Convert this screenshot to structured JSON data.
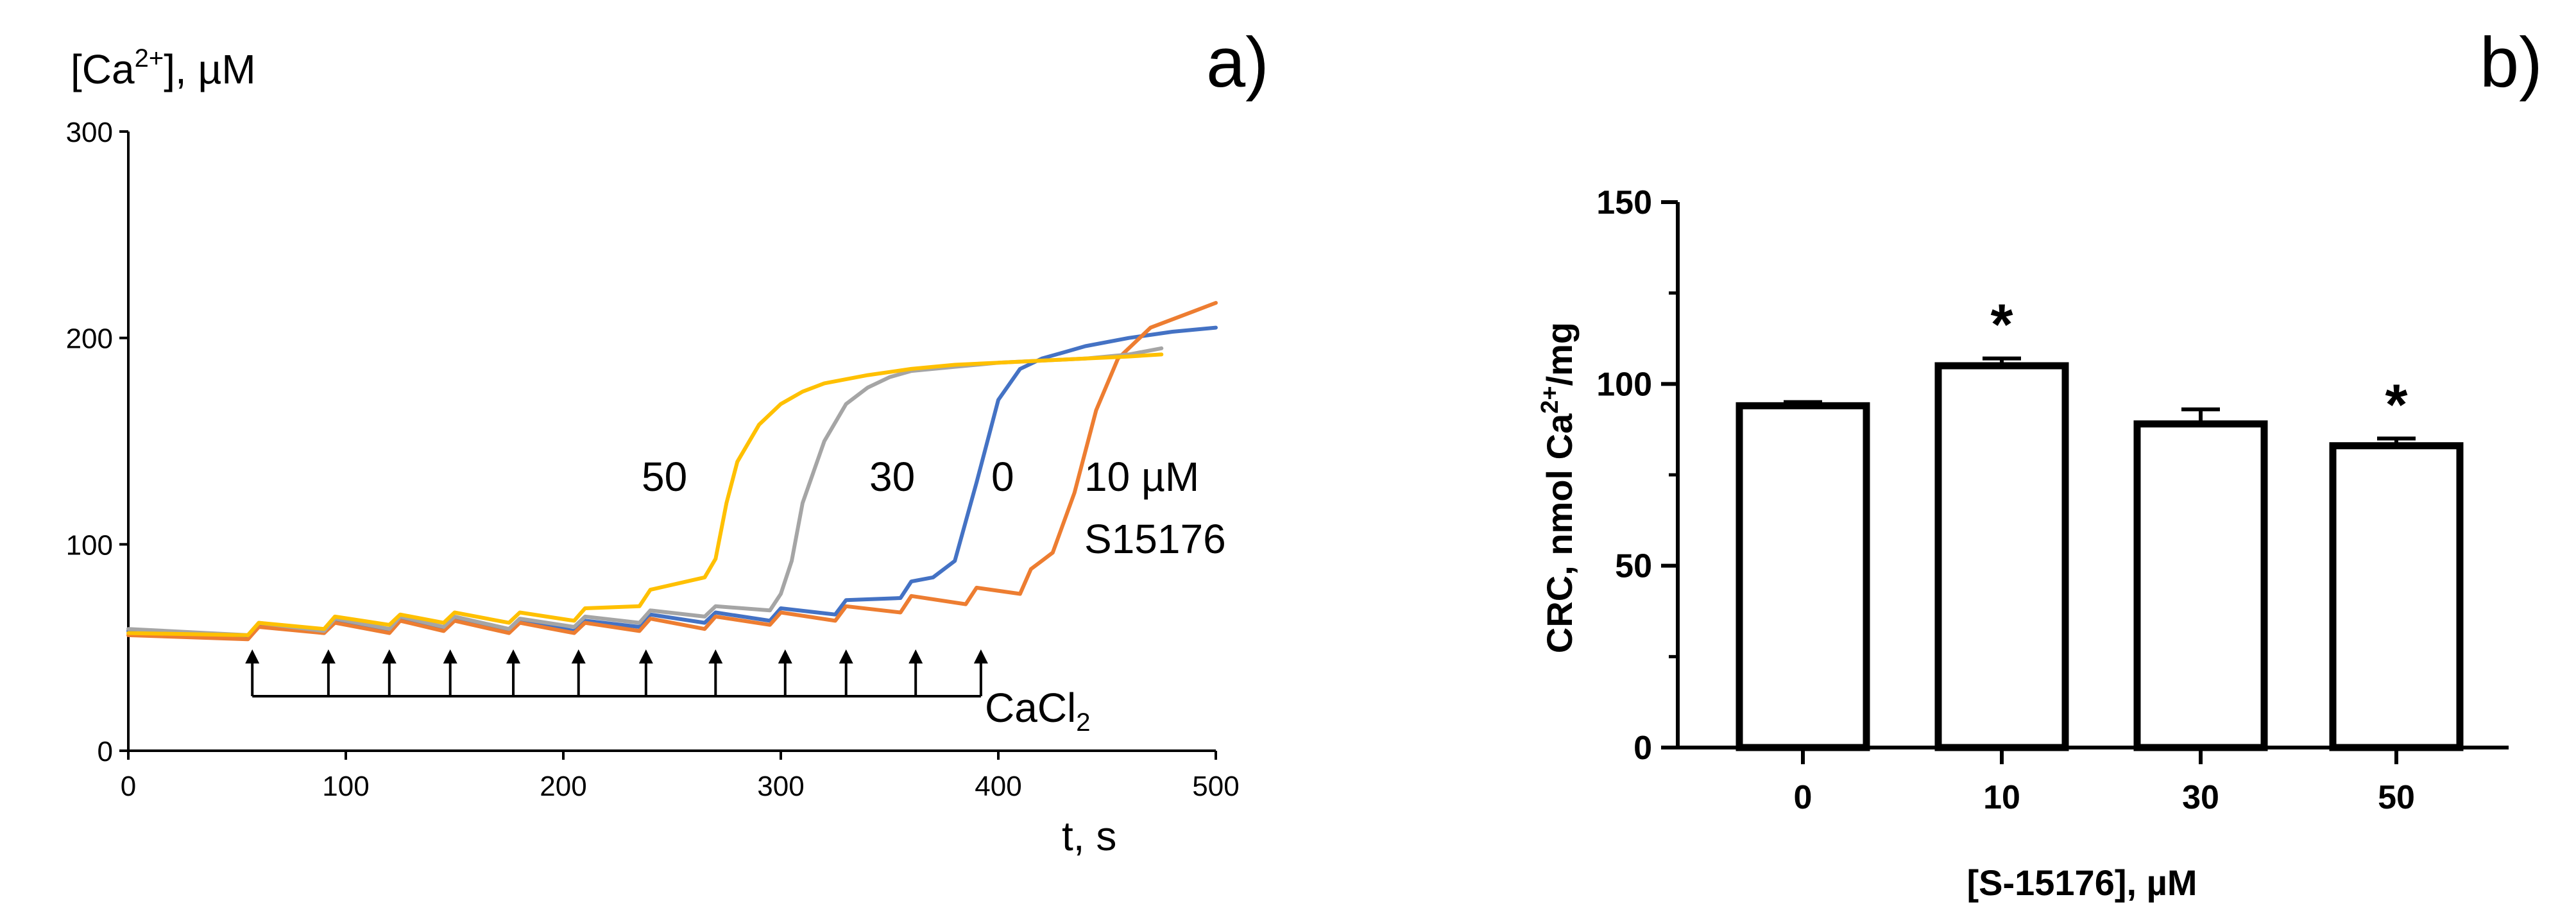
{
  "chart_data": [
    {
      "panel": "a)",
      "type": "line",
      "ylabel": "[Ca",
      "ylabel_sup": "2+",
      "ylabel_tail": "], µM",
      "xlabel": "t, s",
      "xlim": [
        0,
        500
      ],
      "ylim": [
        0,
        300
      ],
      "x_ticks": [
        "0",
        "100",
        "200",
        "300",
        "400",
        "500"
      ],
      "y_ticks": [
        "0",
        "100",
        "200",
        "300"
      ],
      "series": [
        {
          "name": "0",
          "color": "#4472C4",
          "x": [
            0,
            55,
            60,
            90,
            95,
            120,
            125,
            145,
            150,
            175,
            180,
            205,
            210,
            235,
            240,
            265,
            270,
            295,
            300,
            325,
            330,
            355,
            360,
            370,
            380,
            390,
            400,
            410,
            420,
            430,
            440,
            460,
            480,
            500
          ],
          "y": [
            58,
            55,
            61,
            57,
            63,
            58,
            64,
            59,
            64,
            58,
            63,
            58,
            63,
            60,
            66,
            62,
            67,
            63,
            69,
            66,
            73,
            74,
            82,
            84,
            92,
            130,
            170,
            185,
            190,
            193,
            196,
            200,
            203,
            205
          ]
        },
        {
          "name": "10 µM",
          "color": "#ED7D31",
          "x": [
            0,
            55,
            60,
            90,
            95,
            120,
            125,
            145,
            150,
            175,
            180,
            205,
            210,
            235,
            240,
            265,
            270,
            295,
            300,
            325,
            330,
            355,
            360,
            385,
            390,
            410,
            415,
            420,
            425,
            435,
            445,
            455,
            470,
            490,
            500
          ],
          "y": [
            56,
            54,
            60,
            57,
            62,
            57,
            63,
            58,
            63,
            57,
            62,
            57,
            62,
            58,
            64,
            59,
            65,
            61,
            67,
            63,
            70,
            67,
            75,
            71,
            79,
            76,
            88,
            92,
            96,
            125,
            165,
            190,
            205,
            213,
            217
          ]
        },
        {
          "name": "30",
          "color": "#A5A5A5",
          "x": [
            0,
            55,
            60,
            90,
            95,
            120,
            125,
            145,
            150,
            175,
            180,
            205,
            210,
            235,
            240,
            265,
            270,
            295,
            300,
            305,
            310,
            320,
            330,
            340,
            350,
            360,
            380,
            400,
            420,
            440,
            460,
            475
          ],
          "y": [
            59,
            56,
            62,
            58,
            64,
            59,
            65,
            60,
            65,
            59,
            64,
            60,
            65,
            62,
            68,
            65,
            70,
            68,
            76,
            92,
            120,
            150,
            168,
            176,
            181,
            184,
            186,
            188,
            189,
            190,
            192,
            195
          ]
        },
        {
          "name": "50",
          "color": "#FFC000",
          "x": [
            0,
            55,
            60,
            90,
            95,
            120,
            125,
            145,
            150,
            175,
            180,
            205,
            210,
            235,
            240,
            265,
            270,
            275,
            280,
            290,
            300,
            310,
            320,
            340,
            360,
            380,
            400,
            420,
            440,
            460,
            475
          ],
          "y": [
            57,
            56,
            62,
            59,
            65,
            61,
            66,
            62,
            67,
            62,
            67,
            63,
            69,
            70,
            78,
            84,
            93,
            120,
            140,
            158,
            168,
            174,
            178,
            182,
            185,
            187,
            188,
            189,
            190,
            191,
            192
          ]
        }
      ],
      "series_labels": {
        "l50": "50",
        "l30": "30",
        "l0": "0",
        "l10": "10 µM",
        "compound": "S15176"
      },
      "additions": {
        "label": "CaCl",
        "label_sub": "2",
        "times": [
          57,
          92,
          120,
          148,
          177,
          207,
          238,
          270,
          302,
          330,
          362,
          392
        ]
      }
    },
    {
      "panel": "b)",
      "type": "bar",
      "ylabel": "CRC, nmol  Ca",
      "ylabel_sup": "2+",
      "ylabel_tail": "/mg",
      "xlabel": "[S-15176], µM",
      "ylim": [
        0,
        150
      ],
      "y_ticks": [
        "0",
        "50",
        "100",
        "150"
      ],
      "categories": [
        "0",
        "10",
        "30",
        "50"
      ],
      "values": [
        94,
        105,
        89,
        83
      ],
      "errors": [
        1,
        2,
        4,
        2
      ],
      "significance": [
        "",
        "*",
        "",
        "*"
      ]
    }
  ]
}
